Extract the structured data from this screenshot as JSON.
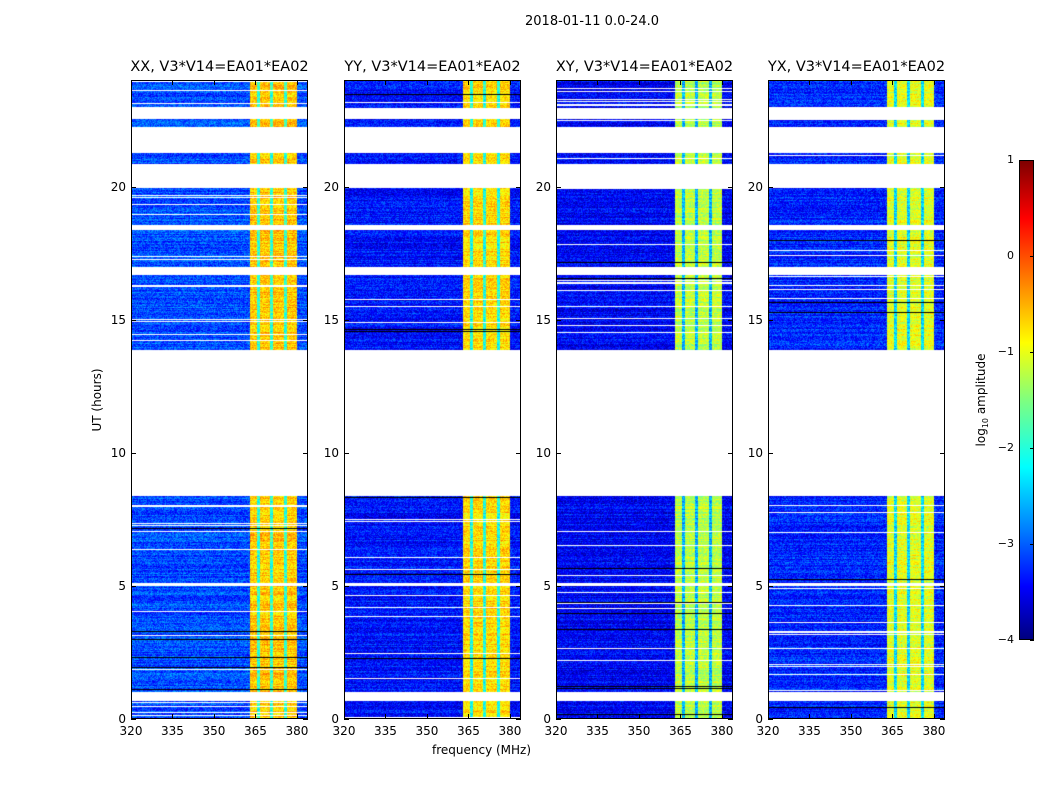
{
  "chart_data": {
    "type": "heatmap",
    "title": "2018-01-11 0.0-24.0",
    "xlabel": "frequency (MHz)",
    "ylabel": "UT (hours)",
    "xlim": [
      320,
      384
    ],
    "ylim": [
      0,
      24
    ],
    "xticks": [
      320,
      335,
      350,
      365,
      380
    ],
    "yticks": [
      0,
      5,
      10,
      15,
      20
    ],
    "panels": [
      {
        "title": "XX, V3*V14=EA01*EA02",
        "background_log_amp": -3.0,
        "band_log_amp": -0.6
      },
      {
        "title": "YY, V3*V14=EA01*EA02",
        "background_log_amp": -3.3,
        "band_log_amp": -0.7
      },
      {
        "title": "XY, V3*V14=EA01*EA02",
        "background_log_amp": -3.4,
        "band_log_amp": -1.2
      },
      {
        "title": "YX, V3*V14=EA01*EA02",
        "background_log_amp": -3.2,
        "band_log_amp": -1.0
      }
    ],
    "strong_band_mhz": [
      363,
      380
    ],
    "band_dips_mhz": [
      366,
      371,
      376
    ],
    "data_segments_ut": [
      [
        0,
        0.65
      ],
      [
        1.0,
        5.0
      ],
      [
        5.1,
        8.4
      ],
      [
        13.9,
        16.7
      ],
      [
        17.0,
        18.4
      ],
      [
        18.6,
        20.0
      ],
      [
        20.9,
        21.3
      ],
      [
        22.3,
        22.6
      ],
      [
        23.0,
        24
      ]
    ],
    "colorbar": {
      "label": "log10 amplitude",
      "label_main": "log",
      "label_sub": "10",
      "label_rest": " amplitude",
      "range": [
        -4,
        1
      ],
      "ticks": [
        -4,
        -3,
        -2,
        -1,
        0,
        1
      ],
      "tick_labels": [
        "−4",
        "−3",
        "−2",
        "−1",
        "0",
        "1"
      ],
      "colormap": "jet"
    }
  }
}
